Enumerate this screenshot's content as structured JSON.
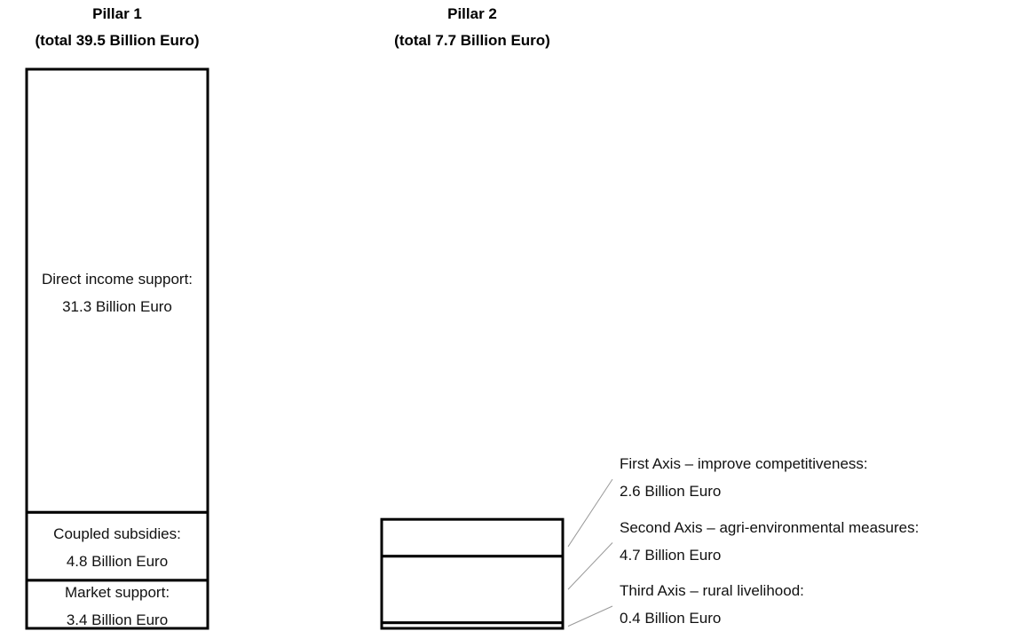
{
  "chart_data": [
    {
      "type": "bar",
      "stacked": true,
      "label_position": "inside",
      "title": "Pillar 1",
      "subtitle": "(total 39.5 Billion Euro)",
      "categories": [
        "Market support:",
        "Coupled subsidies:",
        "Direct income support:"
      ],
      "values": [
        3.4,
        4.8,
        31.3
      ],
      "value_labels": [
        "3.4 Billion Euro",
        "4.8 Billion Euro",
        "31.3 Billion Euro"
      ],
      "color": "#ffffff"
    },
    {
      "type": "bar",
      "stacked": true,
      "label_position": "outside",
      "title": "Pillar 2",
      "subtitle": "(total 7.7 Billion Euro)",
      "categories": [
        "Third Axis – rural livelihood:",
        "Second Axis – agri-environmental measures:",
        "First Axis – improve competitiveness:"
      ],
      "values": [
        0.4,
        4.7,
        2.6
      ],
      "value_labels": [
        "0.4 Billion Euro",
        "4.7 Billion Euro",
        "2.6 Billion Euro"
      ],
      "color": "#ffffff"
    }
  ]
}
